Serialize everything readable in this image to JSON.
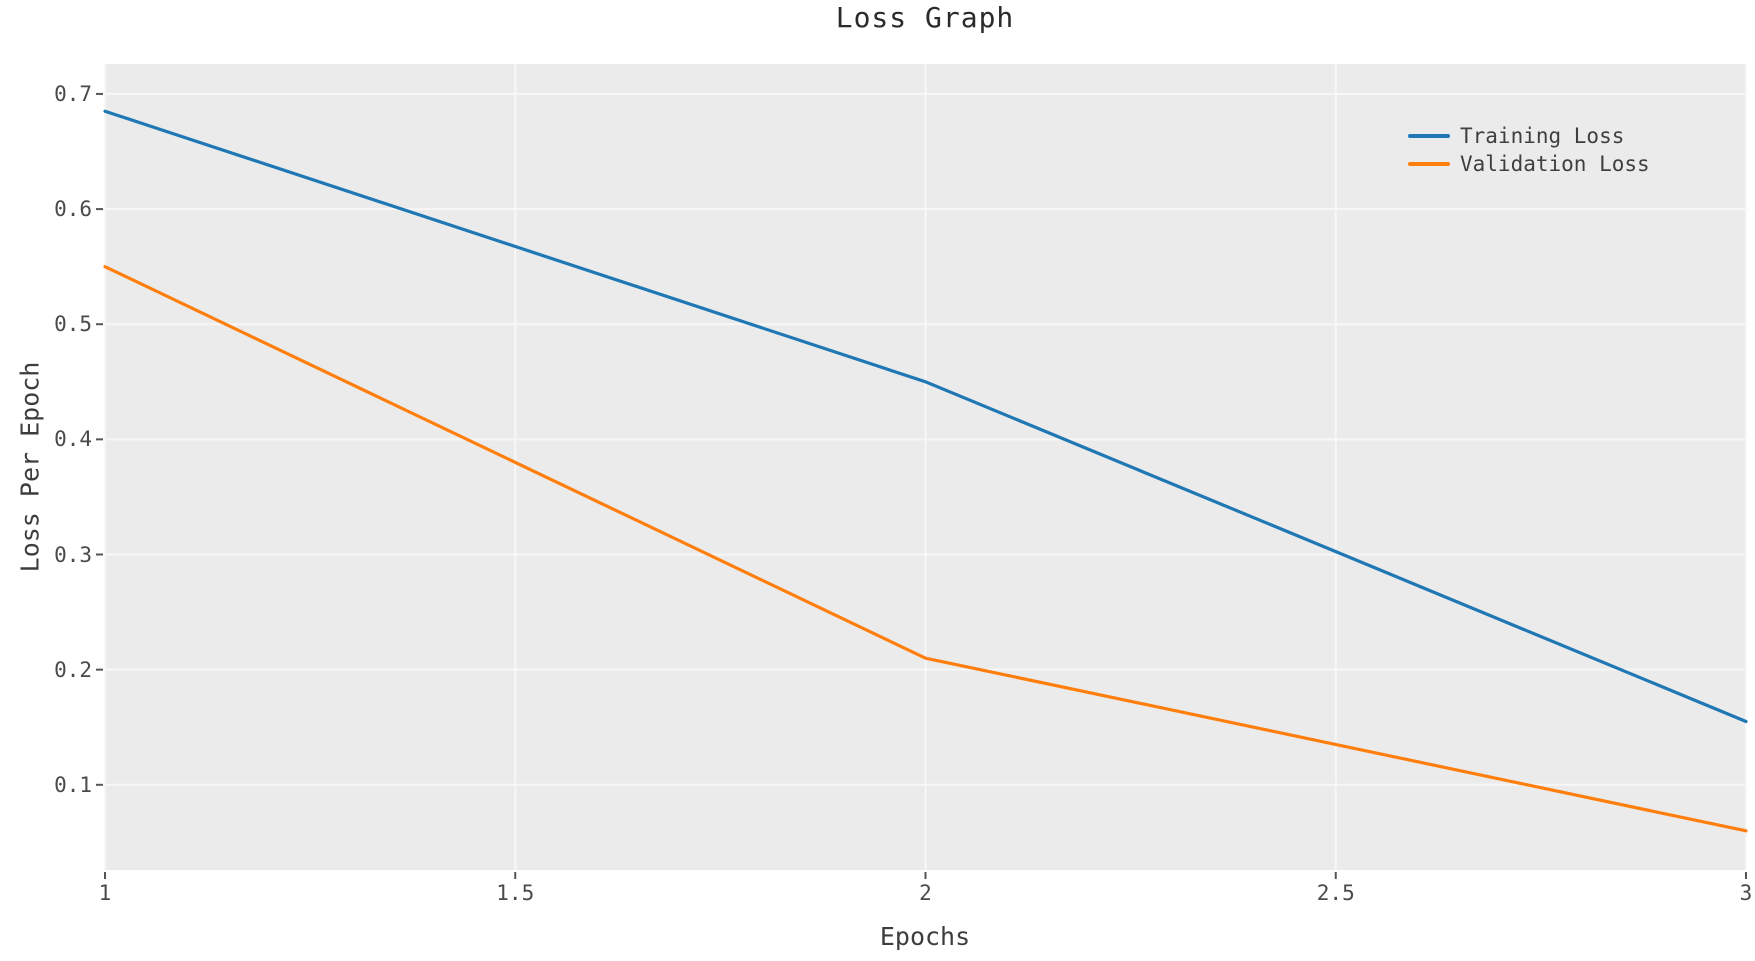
{
  "chart_data": {
    "type": "line",
    "title": "Loss Graph",
    "xlabel": "Epochs",
    "ylabel": "Loss Per Epoch",
    "x": [
      1,
      2,
      3
    ],
    "series": [
      {
        "name": "Training Loss",
        "color": "#1f77b4",
        "values": [
          0.685,
          0.45,
          0.155
        ]
      },
      {
        "name": "Validation Loss",
        "color": "#ff7f0e",
        "values": [
          0.55,
          0.21,
          0.06
        ]
      }
    ],
    "xlim": [
      1,
      3
    ],
    "ylim": [
      0.026,
      0.726
    ],
    "x_ticks": [
      1,
      1.5,
      2,
      2.5,
      3
    ],
    "x_tick_labels": [
      "1",
      "1.5",
      "2",
      "2.5",
      "3"
    ],
    "y_ticks": [
      0.1,
      0.2,
      0.3,
      0.4,
      0.5,
      0.6,
      0.7
    ],
    "y_tick_labels": [
      "0.1",
      "0.2",
      "0.3",
      "0.4",
      "0.5",
      "0.6",
      "0.7"
    ],
    "grid": true,
    "legend_position": "upper-right",
    "colors": {
      "plot_background": "#ebebeb",
      "figure_background": "#ffffff",
      "gridline": "#f7f7f7",
      "tick_mark": "#555555",
      "tick_label": "#4a4a4a",
      "axis_label": "#3d3d3d",
      "title": "#2b2b2b",
      "legend_text": "#3f3f3f",
      "training_line": "#1f77b4",
      "validation_line": "#ff7f0e"
    }
  }
}
